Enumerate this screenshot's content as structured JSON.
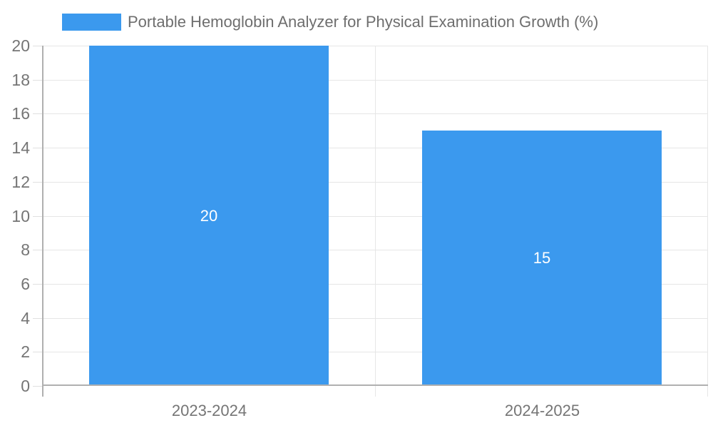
{
  "legend": {
    "label": "Portable Hemoglobin Analyzer for Physical Examination Growth (%)"
  },
  "chart_data": {
    "type": "bar",
    "title": "",
    "xlabel": "",
    "ylabel": "",
    "categories": [
      "2023-2024",
      "2024-2025"
    ],
    "series": [
      {
        "name": "Portable Hemoglobin Analyzer for Physical Examination Growth (%)",
        "values": [
          20,
          15
        ]
      }
    ],
    "value_labels": [
      "20",
      "15"
    ],
    "ylim": [
      0,
      20
    ],
    "ytick_step": 2,
    "yticks": [
      0,
      2,
      4,
      6,
      8,
      10,
      12,
      14,
      16,
      18,
      20
    ],
    "grid": true,
    "legend_position": "top-left",
    "bar_label_position": "inside-center"
  },
  "colors": {
    "bar": "#3b99ee",
    "gridline": "#e6e6e6",
    "axis_line": "#b0b0b0",
    "axis_text": "#757575",
    "legend_text": "#6e6e6e",
    "bar_value_text": "#ffffff",
    "background": "#ffffff"
  }
}
